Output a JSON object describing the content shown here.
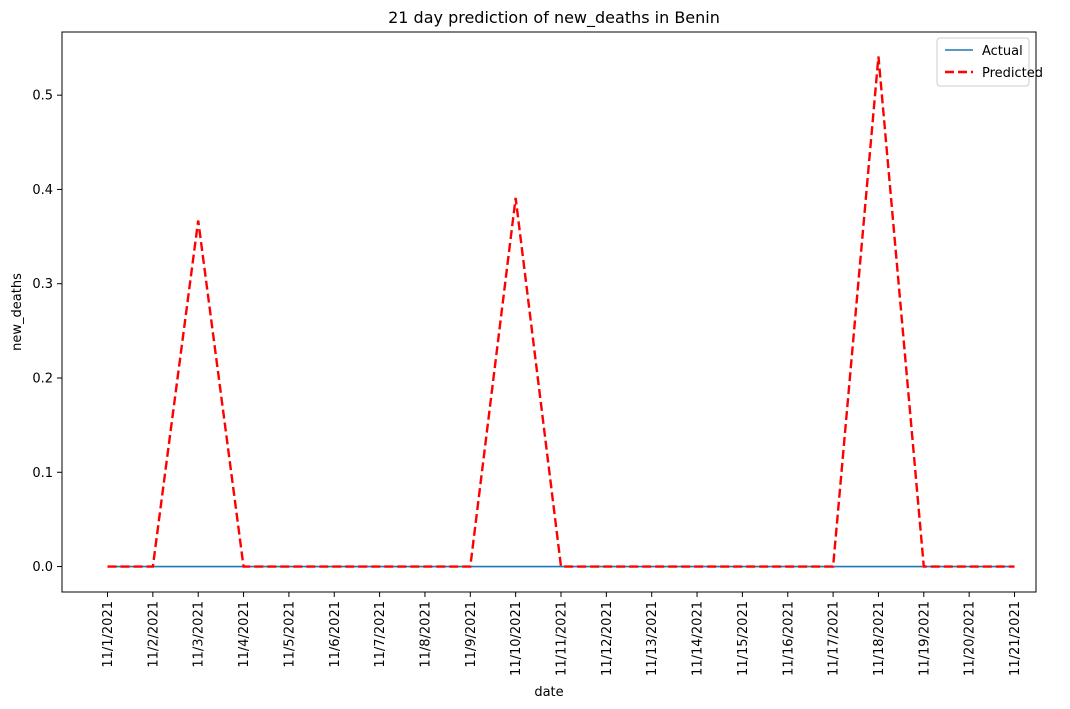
{
  "chart_data": {
    "type": "line",
    "title": "21 day prediction of new_deaths in Benin",
    "xlabel": "date",
    "ylabel": "new_deaths",
    "x": [
      "11/1/2021",
      "11/2/2021",
      "11/3/2021",
      "11/4/2021",
      "11/5/2021",
      "11/6/2021",
      "11/7/2021",
      "11/8/2021",
      "11/9/2021",
      "11/10/2021",
      "11/11/2021",
      "11/12/2021",
      "11/13/2021",
      "11/14/2021",
      "11/15/2021",
      "11/16/2021",
      "11/17/2021",
      "11/18/2021",
      "11/19/2021",
      "11/20/2021",
      "11/21/2021"
    ],
    "ylim": [
      -0.027,
      0.567
    ],
    "yticks": [
      "0.0",
      "0.1",
      "0.2",
      "0.3",
      "0.4",
      "0.5"
    ],
    "grid": false,
    "legend": "top-right",
    "series": [
      {
        "name": "Actual",
        "color": "#1f77b4",
        "style": "solid",
        "values": [
          0,
          0,
          0,
          0,
          0,
          0,
          0,
          0,
          0,
          0,
          0,
          0,
          0,
          0,
          0,
          0,
          0,
          0,
          0,
          0,
          0
        ]
      },
      {
        "name": "Predicted",
        "color": "#ff0000",
        "style": "dashed",
        "values": [
          0,
          0,
          0.367,
          0,
          0,
          0,
          0,
          0,
          0,
          0.391,
          0,
          0,
          0,
          0,
          0,
          0,
          0,
          0.541,
          0,
          0,
          0
        ]
      }
    ]
  }
}
